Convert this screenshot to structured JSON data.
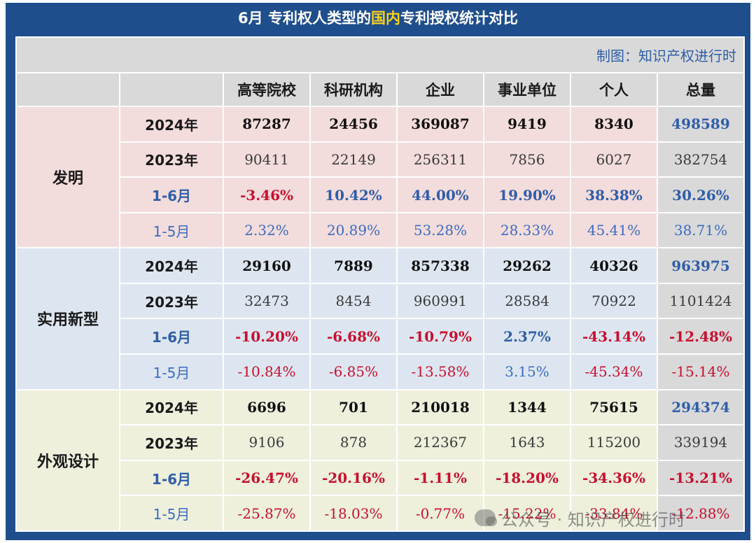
{
  "title": {
    "prefix": "6月  专利权人类型的",
    "highlight": "国内",
    "suffix": "专利授权统计对比"
  },
  "credit": "制图：知识产权进行时",
  "headers": [
    "高等院校",
    "科研机构",
    "企业",
    "事业单位",
    "个人",
    "总量"
  ],
  "watermark": "公众号 · 知识产权进行时",
  "chart_data": {
    "type": "table",
    "title": "6月  专利权人类型的国内专利授权统计对比",
    "columns": [
      "高等院校",
      "科研机构",
      "企业",
      "事业单位",
      "个人",
      "总量"
    ],
    "groups": [
      {
        "category": "发明",
        "rows": [
          {
            "label": "2024年",
            "values": [
              "87287",
              "24456",
              "369087",
              "9419",
              "8340",
              "498589"
            ]
          },
          {
            "label": "2023年",
            "values": [
              "90411",
              "22149",
              "256311",
              "7856",
              "6027",
              "382754"
            ]
          },
          {
            "label": "1-6月",
            "values": [
              "-3.46%",
              "10.42%",
              "44.00%",
              "19.90%",
              "38.38%",
              "30.26%"
            ]
          },
          {
            "label": "1-5月",
            "values": [
              "2.32%",
              "20.89%",
              "53.28%",
              "28.33%",
              "45.41%",
              "38.71%"
            ]
          }
        ]
      },
      {
        "category": "实用新型",
        "rows": [
          {
            "label": "2024年",
            "values": [
              "29160",
              "7889",
              "857338",
              "29262",
              "40326",
              "963975"
            ]
          },
          {
            "label": "2023年",
            "values": [
              "32473",
              "8454",
              "960991",
              "28584",
              "70922",
              "1101424"
            ]
          },
          {
            "label": "1-6月",
            "values": [
              "-10.20%",
              "-6.68%",
              "-10.79%",
              "2.37%",
              "-43.14%",
              "-12.48%"
            ]
          },
          {
            "label": "1-5月",
            "values": [
              "-10.84%",
              "-6.85%",
              "-13.58%",
              "3.15%",
              "-45.34%",
              "-15.14%"
            ]
          }
        ]
      },
      {
        "category": "外观设计",
        "rows": [
          {
            "label": "2024年",
            "values": [
              "6696",
              "701",
              "210018",
              "1344",
              "75615",
              "294374"
            ]
          },
          {
            "label": "2023年",
            "values": [
              "9106",
              "878",
              "212367",
              "1643",
              "115200",
              "339194"
            ]
          },
          {
            "label": "1-6月",
            "values": [
              "-26.47%",
              "-20.16%",
              "-1.11%",
              "-18.20%",
              "-34.36%",
              "-13.21%"
            ]
          },
          {
            "label": "1-5月",
            "values": [
              "-25.87%",
              "-18.03%",
              "-0.77%",
              "-15.22%",
              "-33.84%",
              "-12.88%"
            ]
          }
        ]
      }
    ]
  },
  "colors": {
    "frame": "#1f4e8c",
    "title_highlight": "#f6d21c",
    "invention_bg": "#f3dcdc",
    "utility_bg": "#dde6f0",
    "design_bg": "#eef0dc",
    "header_bg": "#d9d9d9",
    "positive": "#2f5ea8",
    "negative": "#c8102e"
  }
}
